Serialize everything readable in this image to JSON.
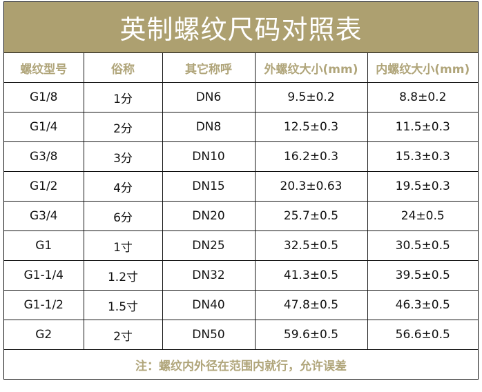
{
  "title": "英制螺纹尺码对照表",
  "columns": [
    "螺纹型号",
    "俗称",
    "其它称呼",
    "外螺纹大小(mm)",
    "内螺纹大小(mm)"
  ],
  "rows": [
    [
      "G1/8",
      "1分",
      "DN6",
      "9.5±0.2",
      "8.8±0.2"
    ],
    [
      "G1/4",
      "2分",
      "DN8",
      "12.5±0.3",
      "11.5±0.3"
    ],
    [
      "G3/8",
      "3分",
      "DN10",
      "16.2±0.3",
      "15.3±0.3"
    ],
    [
      "G1/2",
      "4分",
      "DN15",
      "20.3±0.63",
      "19.5±0.3"
    ],
    [
      "G3/4",
      "6分",
      "DN20",
      "25.7±0.5",
      "24±0.5"
    ],
    [
      "G1",
      "1寸",
      "DN25",
      "32.5±0.5",
      "30.5±0.5"
    ],
    [
      "G1-1/4",
      "1.2寸",
      "DN32",
      "41.3±0.5",
      "39.5±0.5"
    ],
    [
      "G1-1/2",
      "1.5寸",
      "DN40",
      "47.8±0.5",
      "46.3±0.5"
    ],
    [
      "G2",
      "2寸",
      "DN50",
      "59.6±0.5",
      "56.6±0.5"
    ]
  ],
  "note": "注：螺纹内外径在范围内就行，允许误差",
  "colors": {
    "accent": "#ada070",
    "header_text": "#b0a57a"
  }
}
